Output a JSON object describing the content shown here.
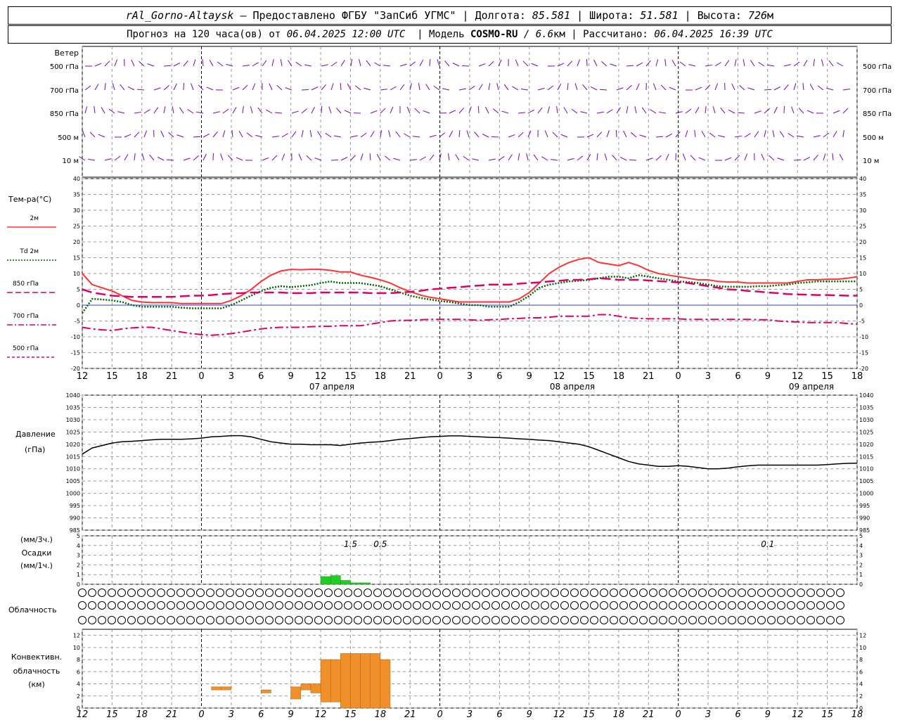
{
  "header": {
    "station": "rAl_Gorno-Altaysk",
    "provider": " — Предоставлено ФГБУ \"ЗапСиб УГМС\" | Долгота: ",
    "lon": "85.581",
    "lat_label": " | Широта: ",
    "lat": "51.581",
    "alt_label": " | Высота: ",
    "alt": "726",
    "alt_unit": "м",
    "forecast_label": "Прогноз на 120 часа(ов) от ",
    "forecast_time": "06.04.2025 12:00 UTC",
    "model_label": "  | Модель ",
    "model": "COSMO-RU",
    "model_res": " / 6.6",
    "model_res_unit": "км",
    "calc_label": " | Рассчитано: ",
    "calc_time": "06.04.2025 16:39 UTC"
  },
  "wind_panel": {
    "title": "Ветер",
    "levels": [
      "500 гПа",
      "700 гПа",
      "850 гПа",
      "500 м",
      "10  м"
    ],
    "color": "#8000c0"
  },
  "temp_panel": {
    "title": "Тем-ра(°C)",
    "legend": [
      {
        "label": "2м",
        "color": "#ff3333",
        "style": "solid"
      },
      {
        "label": "Td  2м",
        "color": "#006600",
        "style": "dotted"
      },
      {
        "label": "850 гПа",
        "color": "#e0006a",
        "style": "dash"
      },
      {
        "label": "700 гПа",
        "color": "#e0006a",
        "style": "dashdot"
      },
      {
        "label": "500 гПа",
        "color": "#e0006a",
        "style": "shortdash"
      }
    ]
  },
  "pressure_panel": {
    "title": "Давление",
    "unit": "(гПа)"
  },
  "precip_panel": {
    "label1": "(мм/3ч.)",
    "label2": "Осадки",
    "label3": "(мм/1ч.)"
  },
  "cloud_panel": {
    "title": "Облачность"
  },
  "conv_panel": {
    "label1": "Конвективн.",
    "label2": "облачность",
    "label3": "(км)"
  },
  "dates": [
    "07 апреля",
    "08 апреля",
    "09 апреля"
  ],
  "hour_labels": [
    "12",
    "15",
    "18",
    "21",
    "0",
    "3",
    "6",
    "9",
    "12",
    "15",
    "18",
    "21",
    "0",
    "3",
    "6",
    "9",
    "12",
    "15",
    "18",
    "21",
    "0",
    "3",
    "6",
    "9",
    "12",
    "15",
    "18"
  ],
  "chart_data": [
    {
      "type": "line",
      "title": "Тем-ра(°C)",
      "x": [
        0,
        1,
        2,
        3,
        4,
        5,
        6,
        7,
        8,
        9,
        10,
        11,
        12,
        13,
        14,
        15,
        16,
        17,
        18,
        19,
        20,
        21,
        22,
        23,
        24,
        25,
        26,
        27,
        28,
        29,
        30,
        31,
        32,
        33,
        34,
        35,
        36,
        37,
        38,
        39,
        40,
        41,
        42,
        43,
        44,
        45,
        46,
        47,
        48,
        49,
        50,
        51,
        52,
        53,
        54,
        55,
        56,
        57,
        58,
        59,
        60,
        61,
        62,
        63,
        64,
        65,
        66,
        67,
        68,
        69,
        70,
        71,
        72,
        73,
        74,
        75,
        76,
        77,
        78
      ],
      "x_unit": "hours from 06.04.2025 12:00 UTC",
      "ylim": [
        -20,
        40
      ],
      "series": [
        {
          "name": "2м",
          "values": [
            10,
            6.5,
            5.5,
            4.5,
            3,
            1.5,
            1,
            0.8,
            0.8,
            0.8,
            0.5,
            0.5,
            0.5,
            0.5,
            0.5,
            1.5,
            3,
            5,
            7.5,
            9.5,
            10.8,
            11.3,
            11.2,
            11.3,
            11.3,
            11,
            10.5,
            10.5,
            9.5,
            8.8,
            8,
            7,
            5.5,
            4.3,
            3.2,
            2.5,
            2,
            1.5,
            1,
            1,
            1,
            1,
            1,
            1,
            2,
            4,
            7,
            10,
            12,
            13.5,
            14.5,
            15,
            13.5,
            13,
            12.5,
            13.5,
            12.5,
            11,
            10,
            9.5,
            9,
            8.5,
            8,
            8,
            7.5,
            7.3,
            7.3,
            7,
            7,
            7,
            7,
            7,
            7.5,
            8,
            8,
            8.2,
            8.2,
            8.5,
            9
          ]
        },
        {
          "name": "Td  2м",
          "values": [
            -2.5,
            2,
            1.8,
            1.5,
            1,
            0,
            -0.5,
            -0.5,
            -0.5,
            -0.5,
            -0.8,
            -1,
            -1,
            -1,
            -1,
            0,
            1.5,
            3,
            4.5,
            5.5,
            6,
            5.7,
            6,
            6.3,
            7,
            7.5,
            7,
            7,
            7,
            6.5,
            6,
            5,
            4,
            3,
            2.3,
            1.8,
            1.3,
            1,
            0.5,
            0,
            0,
            -0.5,
            -0.5,
            -0.5,
            1,
            3,
            5.5,
            6.5,
            7,
            7.5,
            7.7,
            8,
            8.5,
            9,
            9,
            8.5,
            9.5,
            9,
            8.5,
            8,
            7.5,
            7.3,
            7,
            6.5,
            6,
            5.8,
            5.8,
            5.8,
            6,
            6,
            6.3,
            6.5,
            7,
            7.2,
            7.5,
            7.5,
            7.5,
            7.5,
            7.5
          ]
        },
        {
          "name": "850 гПа",
          "values": [
            5,
            4,
            3.5,
            3,
            2.8,
            2.6,
            2.6,
            2.6,
            2.6,
            2.6,
            2.8,
            3,
            3,
            3.2,
            3.5,
            3.7,
            3.8,
            4,
            4,
            4,
            4,
            3.8,
            3.8,
            3.8,
            4,
            4,
            4,
            4,
            4,
            3.8,
            3.8,
            3.8,
            4,
            4.2,
            4.5,
            5,
            5.2,
            5.5,
            5.7,
            6,
            6.2,
            6.5,
            6.5,
            6.5,
            6.8,
            7,
            7.2,
            7.5,
            7.7,
            8,
            8,
            8.2,
            8.5,
            8.3,
            8,
            8,
            8,
            7.8,
            7.6,
            7.4,
            7.2,
            7,
            6.5,
            6,
            5.5,
            5,
            4.8,
            4.5,
            4.3,
            4,
            3.8,
            3.5,
            3.4,
            3.3,
            3.2,
            3.2,
            3.1,
            3,
            3
          ]
        },
        {
          "name": "700 гПа",
          "values": [
            -7,
            -7.5,
            -7.8,
            -8,
            -7.5,
            -7.2,
            -7,
            -7,
            -7.5,
            -8,
            -8.5,
            -9,
            -9.3,
            -9.5,
            -9.3,
            -9,
            -8.5,
            -8,
            -7.5,
            -7.2,
            -7,
            -7,
            -7,
            -6.8,
            -6.7,
            -6.7,
            -6.5,
            -6.5,
            -6.5,
            -6,
            -5.5,
            -5,
            -4.8,
            -4.8,
            -4.6,
            -4.5,
            -4.5,
            -4.5,
            -4.5,
            -4.6,
            -4.8,
            -4.6,
            -4.5,
            -4.3,
            -4.2,
            -4,
            -4,
            -3.8,
            -3.5,
            -3.5,
            -3.5,
            -3.5,
            -3,
            -3,
            -3.5,
            -4,
            -4.2,
            -4.3,
            -4.3,
            -4.3,
            -4.3,
            -4.5,
            -4.5,
            -4.5,
            -4.5,
            -4.5,
            -4.5,
            -4.5,
            -4.6,
            -4.6,
            -5,
            -5.2,
            -5.3,
            -5.5,
            -5.5,
            -5.5,
            -5.5,
            -5.8,
            -6
          ]
        }
      ]
    },
    {
      "type": "line",
      "title": "Давление",
      "ylabel": "(гПа)",
      "ylim": [
        985,
        1040
      ],
      "series": [
        {
          "name": "Давление",
          "values": [
            1016,
            1018.5,
            1019.5,
            1020.5,
            1021,
            1021.2,
            1021.5,
            1021.8,
            1022,
            1022,
            1022,
            1022.2,
            1022.5,
            1023,
            1023.2,
            1023.5,
            1023.5,
            1023,
            1022,
            1021,
            1020.5,
            1020,
            1020,
            1019.8,
            1019.8,
            1019.8,
            1019.5,
            1020,
            1020.5,
            1020.8,
            1021,
            1021.5,
            1022,
            1022.3,
            1022.7,
            1023,
            1023.2,
            1023.4,
            1023.4,
            1023.2,
            1023,
            1022.8,
            1022.7,
            1022.5,
            1022.2,
            1022,
            1021.7,
            1021.5,
            1021,
            1020.5,
            1020,
            1019,
            1017.5,
            1016,
            1014.5,
            1013,
            1012,
            1011.5,
            1011,
            1011,
            1011.3,
            1011,
            1010.5,
            1010,
            1010,
            1010.3,
            1010.8,
            1011.2,
            1011.5,
            1011.5,
            1011.5,
            1011.5,
            1011.5,
            1011.5,
            1011.5,
            1011.7,
            1012,
            1012.2,
            1012.3
          ]
        }
      ]
    },
    {
      "type": "bar",
      "title": "Осадки",
      "annotations_mm3h": [
        {
          "hour": 27,
          "value": "1.5"
        },
        {
          "hour": 30,
          "value": "0.5"
        },
        {
          "hour": 69,
          "value": "0.1"
        }
      ],
      "bars_mm1h": [
        {
          "hour": 24,
          "value": 0.8
        },
        {
          "hour": 25,
          "value": 0.9
        },
        {
          "hour": 26,
          "value": 0.4
        },
        {
          "hour": 27,
          "value": 0.15
        },
        {
          "hour": 28,
          "value": 0.15
        }
      ]
    },
    {
      "type": "bar",
      "title": "Конвективн. облачность",
      "ylabel": "(км)",
      "ylim": [
        0,
        13
      ],
      "bars": [
        {
          "hour": 13,
          "bottom": 3,
          "top": 3.5
        },
        {
          "hour": 14,
          "bottom": 3,
          "top": 3.5
        },
        {
          "hour": 18,
          "bottom": 2.5,
          "top": 3
        },
        {
          "hour": 21,
          "bottom": 1.5,
          "top": 3.5
        },
        {
          "hour": 22,
          "bottom": 3,
          "top": 4
        },
        {
          "hour": 23,
          "bottom": 2.5,
          "top": 4
        },
        {
          "hour": 24,
          "bottom": 1,
          "top": 8
        },
        {
          "hour": 25,
          "bottom": 1,
          "top": 8
        },
        {
          "hour": 26,
          "bottom": 0,
          "top": 9
        },
        {
          "hour": 27,
          "bottom": 0,
          "top": 9
        },
        {
          "hour": 28,
          "bottom": 0,
          "top": 9
        },
        {
          "hour": 29,
          "bottom": 0,
          "top": 9
        },
        {
          "hour": 30,
          "bottom": 0,
          "top": 8
        }
      ]
    }
  ]
}
